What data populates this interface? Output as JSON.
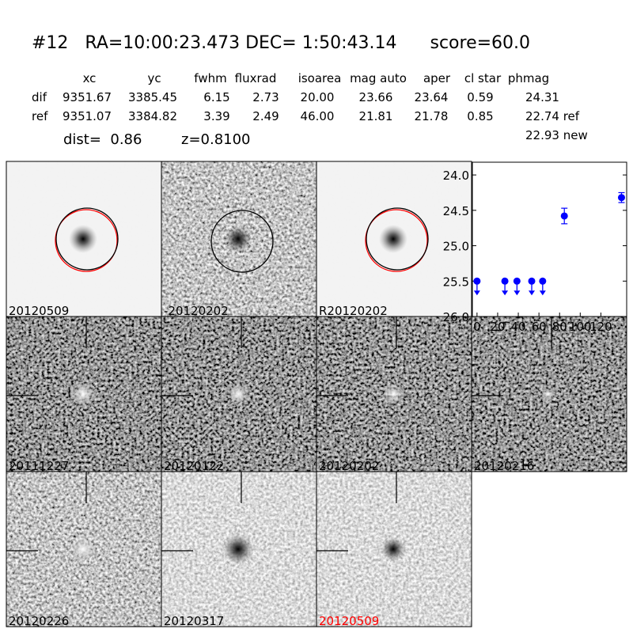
{
  "title": {
    "id": "#12",
    "ra": "RA=10:00:23.473",
    "dec": "DEC= 1:50:43.14",
    "score": "score=60.0"
  },
  "table": {
    "columns": [
      "xc",
      "yc",
      "fwhm",
      "fluxrad",
      "isoarea",
      "mag auto",
      "aper",
      "cl star",
      "phmag"
    ],
    "rows": [
      {
        "label": "dif",
        "values": [
          "9351.67",
          "3385.45",
          "6.15",
          "2.73",
          "20.00",
          "23.66",
          "23.64",
          "0.59",
          "24.31"
        ]
      },
      {
        "label": "ref",
        "values": [
          "9351.07",
          "3384.82",
          "3.39",
          "2.49",
          "46.00",
          "21.81",
          "21.78",
          "0.85",
          "22.74 ref"
        ]
      }
    ],
    "extra": "22.93 new"
  },
  "dist": "dist=  0.86",
  "z": "z=0.8100",
  "stamps": [
    {
      "label": "20120509",
      "label_color": "#000000"
    },
    {
      "label": "-20120202",
      "label_color": "#000000"
    },
    {
      "label": "R20120202",
      "label_color": "#000000"
    },
    {
      "label": "20111227",
      "label_color": "#000000"
    },
    {
      "label": "20120122",
      "label_color": "#000000"
    },
    {
      "label": "20120202",
      "label_color": "#000000"
    },
    {
      "label": "20120216",
      "label_color": "#000000"
    },
    {
      "label": "20120226",
      "label_color": "#000000"
    },
    {
      "label": "20120317",
      "label_color": "#000000"
    },
    {
      "label": "20120509",
      "label_color": "#ff0000"
    }
  ],
  "chart_data": {
    "type": "scatter",
    "xlim": [
      -4.5,
      145
    ],
    "ylim": [
      26.0,
      23.82
    ],
    "y_inverted": true,
    "xticks": [
      "0",
      "20",
      "40",
      "60",
      "80",
      "100",
      "120"
    ],
    "yticks": [
      "24.0",
      "24.5",
      "25.0",
      "25.5",
      "26.0"
    ],
    "color": "#0000ff",
    "points": [
      {
        "x": 0,
        "y": 25.5,
        "upper_limit": true
      },
      {
        "x": 27,
        "y": 25.5,
        "upper_limit": true
      },
      {
        "x": 38.7,
        "y": 25.5,
        "upper_limit": true
      },
      {
        "x": 53,
        "y": 25.5,
        "upper_limit": true
      },
      {
        "x": 63.6,
        "y": 25.5,
        "upper_limit": true
      },
      {
        "x": 84.6,
        "y": 24.58,
        "err": 0.11,
        "upper_limit": false
      },
      {
        "x": 140,
        "y": 24.32,
        "err": 0.07,
        "upper_limit": false
      }
    ]
  }
}
